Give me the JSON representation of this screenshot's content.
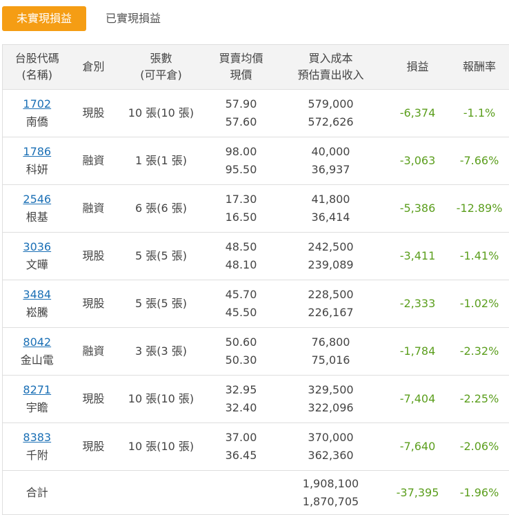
{
  "tabs": {
    "active": "未實現損益",
    "other": "已實現損益"
  },
  "header": {
    "stock": [
      "台股代碼",
      "(名稱)"
    ],
    "type": "倉別",
    "qty": [
      "張數",
      "(可平倉)"
    ],
    "price": [
      "買賣均價",
      "現價"
    ],
    "cost": [
      "買入成本",
      "預估賣出收入"
    ],
    "pl": "損益",
    "rate": "報酬率"
  },
  "rows": [
    {
      "code": "1702",
      "name": "南僑",
      "type": "現股",
      "qty": "10 張(10 張)",
      "avg": "57.90",
      "now": "57.60",
      "cost": "579,000",
      "income": "572,626",
      "pl": "-6,374",
      "rate": "-1.1%"
    },
    {
      "code": "1786",
      "name": "科妍",
      "type": "融資",
      "qty": "1 張(1 張)",
      "avg": "98.00",
      "now": "95.50",
      "cost": "40,000",
      "income": "36,937",
      "pl": "-3,063",
      "rate": "-7.66%"
    },
    {
      "code": "2546",
      "name": "根基",
      "type": "融資",
      "qty": "6 張(6 張)",
      "avg": "17.30",
      "now": "16.50",
      "cost": "41,800",
      "income": "36,414",
      "pl": "-5,386",
      "rate": "-12.89%"
    },
    {
      "code": "3036",
      "name": "文曄",
      "type": "現股",
      "qty": "5 張(5 張)",
      "avg": "48.50",
      "now": "48.10",
      "cost": "242,500",
      "income": "239,089",
      "pl": "-3,411",
      "rate": "-1.41%"
    },
    {
      "code": "3484",
      "name": "崧騰",
      "type": "現股",
      "qty": "5 張(5 張)",
      "avg": "45.70",
      "now": "45.50",
      "cost": "228,500",
      "income": "226,167",
      "pl": "-2,333",
      "rate": "-1.02%"
    },
    {
      "code": "8042",
      "name": "金山電",
      "type": "融資",
      "qty": "3 張(3 張)",
      "avg": "50.60",
      "now": "50.30",
      "cost": "76,800",
      "income": "75,016",
      "pl": "-1,784",
      "rate": "-2.32%"
    },
    {
      "code": "8271",
      "name": "宇瞻",
      "type": "現股",
      "qty": "10 張(10 張)",
      "avg": "32.95",
      "now": "32.40",
      "cost": "329,500",
      "income": "322,096",
      "pl": "-7,404",
      "rate": "-2.25%"
    },
    {
      "code": "8383",
      "name": "千附",
      "type": "現股",
      "qty": "10 張(10 張)",
      "avg": "37.00",
      "now": "36.45",
      "cost": "370,000",
      "income": "362,360",
      "pl": "-7,640",
      "rate": "-2.06%"
    }
  ],
  "total": {
    "label": "合計",
    "cost": "1,908,100",
    "income": "1,870,705",
    "pl": "-37,395",
    "rate": "-1.96%"
  },
  "colors": {
    "accent": "#f59d14",
    "link": "#1a6fb5",
    "profit_loss": "#5b9e1d"
  }
}
